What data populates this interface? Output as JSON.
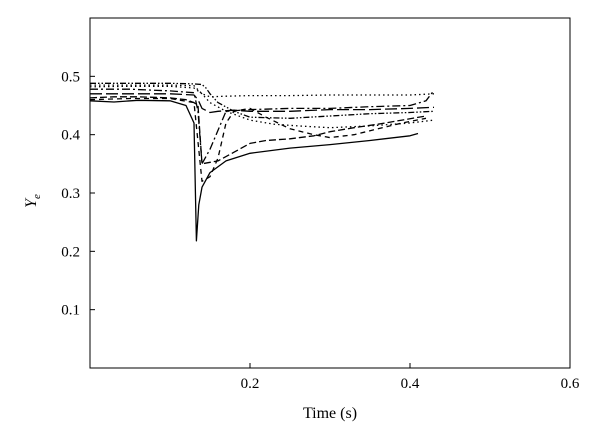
{
  "chart_data": {
    "type": "line",
    "title": "",
    "xlabel": "Time (s)",
    "ylabel": "Y",
    "ylabel_sub": "e",
    "xlim": [
      0,
      0.6
    ],
    "ylim": [
      0,
      0.6
    ],
    "xticks": [
      0.2,
      0.4,
      0.6
    ],
    "xtick_labels": [
      "0.2",
      "0.4",
      "0.6"
    ],
    "yticks": [
      0.1,
      0.2,
      0.3,
      0.4,
      0.5
    ],
    "ytick_labels": [
      "0.1",
      "0.2",
      "0.3",
      "0.4",
      "0.5"
    ],
    "grid": false,
    "legend": "none",
    "series": [
      {
        "style": "solid",
        "x": [
          0,
          0.03,
          0.06,
          0.1,
          0.12,
          0.13,
          0.133,
          0.136,
          0.14,
          0.15,
          0.17,
          0.2,
          0.25,
          0.3,
          0.35,
          0.4,
          0.41
        ],
        "y": [
          0.458,
          0.456,
          0.459,
          0.458,
          0.45,
          0.42,
          0.218,
          0.28,
          0.31,
          0.335,
          0.355,
          0.368,
          0.377,
          0.383,
          0.39,
          0.398,
          0.402
        ]
      },
      {
        "style": "dashed",
        "x": [
          0,
          0.03,
          0.06,
          0.1,
          0.12,
          0.13,
          0.135,
          0.14,
          0.16,
          0.18,
          0.2,
          0.22,
          0.25,
          0.28,
          0.3,
          0.33,
          0.36,
          0.39,
          0.42
        ],
        "y": [
          0.463,
          0.465,
          0.465,
          0.463,
          0.46,
          0.455,
          0.45,
          0.35,
          0.355,
          0.37,
          0.385,
          0.39,
          0.393,
          0.398,
          0.405,
          0.412,
          0.418,
          0.425,
          0.432
        ]
      },
      {
        "style": "dashed-thin",
        "x": [
          0,
          0.05,
          0.1,
          0.13,
          0.14,
          0.15,
          0.16,
          0.17,
          0.18,
          0.2,
          0.22,
          0.25,
          0.28,
          0.3,
          0.33,
          0.36,
          0.39,
          0.42
        ],
        "y": [
          0.46,
          0.462,
          0.462,
          0.455,
          0.32,
          0.328,
          0.36,
          0.42,
          0.44,
          0.445,
          0.43,
          0.41,
          0.4,
          0.395,
          0.4,
          0.41,
          0.42,
          0.428
        ]
      },
      {
        "style": "dashdot",
        "x": [
          0,
          0.05,
          0.1,
          0.13,
          0.135,
          0.14,
          0.15,
          0.17,
          0.2,
          0.25,
          0.3,
          0.35,
          0.4,
          0.42,
          0.43
        ],
        "y": [
          0.478,
          0.478,
          0.475,
          0.472,
          0.44,
          0.35,
          0.375,
          0.44,
          0.443,
          0.445,
          0.445,
          0.448,
          0.45,
          0.458,
          0.476
        ]
      },
      {
        "style": "longdash",
        "x": [
          0,
          0.05,
          0.1,
          0.13,
          0.135,
          0.14,
          0.15,
          0.16,
          0.18,
          0.2,
          0.25,
          0.3,
          0.35,
          0.4,
          0.43
        ],
        "y": [
          0.47,
          0.47,
          0.47,
          0.468,
          0.46,
          0.445,
          0.438,
          0.44,
          0.442,
          0.44,
          0.44,
          0.443,
          0.443,
          0.445,
          0.447
        ]
      },
      {
        "style": "dotted",
        "x": [
          0,
          0.05,
          0.1,
          0.13,
          0.14,
          0.15,
          0.17,
          0.2,
          0.25,
          0.3,
          0.35,
          0.4,
          0.43
        ],
        "y": [
          0.485,
          0.485,
          0.485,
          0.484,
          0.47,
          0.465,
          0.466,
          0.467,
          0.467,
          0.468,
          0.468,
          0.468,
          0.47
        ]
      },
      {
        "style": "dotted",
        "x": [
          0,
          0.05,
          0.1,
          0.13,
          0.14,
          0.15,
          0.17,
          0.2,
          0.23,
          0.26,
          0.3,
          0.35,
          0.4,
          0.43
        ],
        "y": [
          0.482,
          0.483,
          0.483,
          0.48,
          0.47,
          0.455,
          0.44,
          0.425,
          0.418,
          0.415,
          0.412,
          0.415,
          0.42,
          0.425
        ]
      },
      {
        "style": "dashdotdot",
        "x": [
          0,
          0.05,
          0.1,
          0.13,
          0.14,
          0.145,
          0.15,
          0.16,
          0.18,
          0.2,
          0.25,
          0.3,
          0.35,
          0.4,
          0.43
        ],
        "y": [
          0.488,
          0.488,
          0.488,
          0.487,
          0.486,
          0.48,
          0.47,
          0.455,
          0.44,
          0.43,
          0.428,
          0.432,
          0.436,
          0.438,
          0.44
        ]
      }
    ]
  }
}
